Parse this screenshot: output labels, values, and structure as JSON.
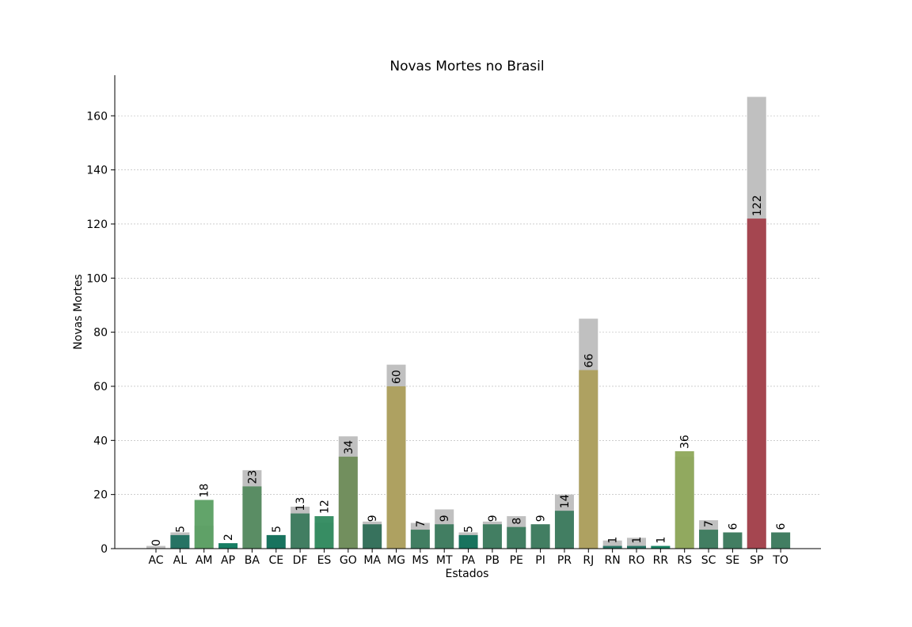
{
  "chart_data": {
    "type": "bar",
    "title": "Novas Mortes no Brasil",
    "xlabel": "Estados",
    "ylabel": "Novas Mortes",
    "ylim": [
      0,
      175
    ],
    "yticks": [
      0,
      20,
      40,
      60,
      80,
      100,
      120,
      140,
      160
    ],
    "grid": "horizontal dashed",
    "categories": [
      "AC",
      "AL",
      "AM",
      "AP",
      "BA",
      "CE",
      "DF",
      "ES",
      "GO",
      "MA",
      "MG",
      "MS",
      "MT",
      "PA",
      "PB",
      "PE",
      "PI",
      "PR",
      "RJ",
      "RN",
      "RO",
      "RR",
      "RS",
      "SC",
      "SE",
      "SP",
      "TO"
    ],
    "series": [
      {
        "values": [
          0,
          5,
          18,
          2,
          23,
          5,
          13,
          12,
          34,
          9,
          60,
          7,
          9,
          5,
          9,
          8,
          9,
          14,
          66,
          1,
          1,
          1,
          36,
          7,
          6,
          122,
          6
        ],
        "colors": [
          "#7a7a7a",
          "#1f6f5f",
          "#5a9f62",
          "#0e7a5e",
          "#548a5f",
          "#0f6f58",
          "#3b7a5d",
          "#2f8a5e",
          "#6e8c58",
          "#2f6e57",
          "#ad9f5c",
          "#3b7a5d",
          "#3b7a5d",
          "#0f6f58",
          "#3b7a5d",
          "#3b7a5d",
          "#3b7a5d",
          "#3b7a5d",
          "#ad9f5c",
          "#1f6f5f",
          "#1f6f5f",
          "#117f5f",
          "#8ea85a",
          "#3b7a5d",
          "#3b7a5d",
          "#a33f4a",
          "#3b7a5d"
        ]
      },
      {
        "values": [
          1,
          6,
          8.5,
          2,
          29,
          5,
          15.5,
          9.5,
          41.5,
          10,
          68,
          9.5,
          14.5,
          6,
          10,
          12,
          9,
          20,
          85,
          3,
          4,
          1,
          34,
          10.5,
          6,
          167,
          6
        ],
        "color": "#c0c0c0"
      }
    ],
    "bar_labels": [
      "0",
      "5",
      "18",
      "2",
      "23",
      "5",
      "13",
      "12",
      "34",
      "9",
      "60",
      "7",
      "9",
      "5",
      "9",
      "8",
      "9",
      "14",
      "66",
      "1",
      "1",
      "1",
      "36",
      "7",
      "6",
      "122",
      "6"
    ]
  }
}
